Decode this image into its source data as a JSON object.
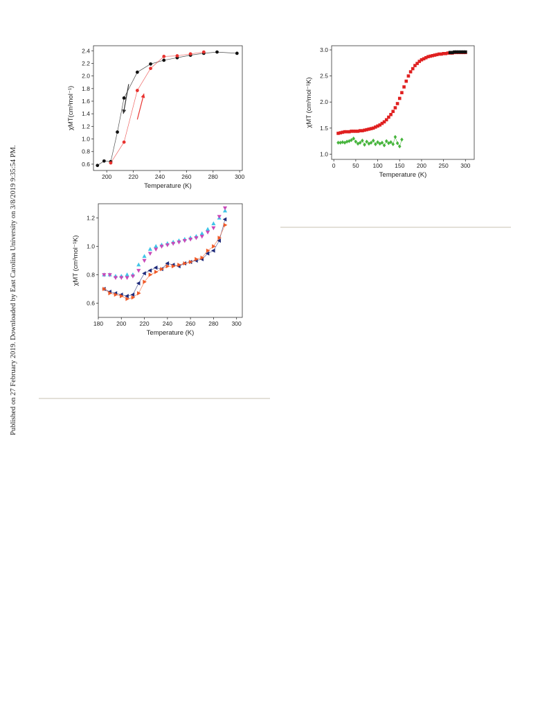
{
  "watermark": "Published on 27 February 2019. Downloaded by East Carolina University on 3/8/2019 9:35:54 PM.",
  "chart_data": [
    {
      "type": "scatter",
      "xlabel": "Temperature (K)",
      "ylabel": "χMT(cm³mol⁻¹)",
      "xlim": [
        190,
        302
      ],
      "ylim": [
        0.5,
        2.48
      ],
      "xticks": [
        200,
        220,
        240,
        260,
        280,
        300
      ],
      "yticks": [
        0.6,
        0.8,
        1.0,
        1.2,
        1.4,
        1.6,
        1.8,
        2.0,
        2.2,
        2.4
      ],
      "grid": false,
      "series": [
        {
          "color": "#111111",
          "connect": true,
          "x": [
            193,
            198,
            203,
            208,
            213,
            223,
            233,
            243,
            253,
            263,
            273,
            283,
            298
          ],
          "y": [
            0.58,
            0.65,
            0.64,
            1.11,
            1.65,
            2.06,
            2.19,
            2.25,
            2.29,
            2.33,
            2.36,
            2.38,
            2.36
          ]
        },
        {
          "color": "#e8322f",
          "connect": true,
          "x": [
            203,
            213,
            223,
            233,
            243,
            253,
            263,
            273
          ],
          "y": [
            0.62,
            0.95,
            1.77,
            2.12,
            2.31,
            2.32,
            2.35,
            2.38
          ]
        }
      ],
      "arrows": [
        {
          "color": "#333333",
          "from": [
            216.5,
            1.87
          ],
          "to": [
            212.5,
            1.4
          ]
        },
        {
          "color": "#e8322f",
          "from": [
            223,
            1.31
          ],
          "to": [
            228,
            1.72
          ]
        }
      ]
    },
    {
      "type": "scatter",
      "xlabel": "Temperature (K)",
      "ylabel": "χMT (cm³mol⁻¹K)",
      "xlim": [
        -5,
        320
      ],
      "ylim": [
        0.9,
        3.08
      ],
      "xticks": [
        0,
        50,
        100,
        150,
        200,
        250,
        300
      ],
      "yticks": [
        1.0,
        1.5,
        2.0,
        2.5,
        3.0
      ],
      "grid": false,
      "series": [
        {
          "color": "#e02020",
          "marker": "square",
          "x": [
            10,
            15,
            20,
            25,
            30,
            35,
            40,
            45,
            50,
            55,
            60,
            65,
            70,
            75,
            80,
            85,
            90,
            95,
            100,
            105,
            110,
            115,
            120,
            125,
            130,
            135,
            140,
            145,
            150,
            155,
            160,
            165,
            170,
            175,
            180,
            185,
            190,
            195,
            200,
            205,
            210,
            215,
            220,
            225,
            230,
            235,
            240,
            245,
            250,
            255,
            260,
            265,
            270,
            275,
            280,
            285,
            290,
            295,
            300
          ],
          "y": [
            1.4,
            1.41,
            1.42,
            1.43,
            1.43,
            1.43,
            1.44,
            1.44,
            1.44,
            1.44,
            1.45,
            1.45,
            1.46,
            1.47,
            1.48,
            1.49,
            1.5,
            1.52,
            1.54,
            1.56,
            1.59,
            1.62,
            1.66,
            1.71,
            1.76,
            1.82,
            1.89,
            1.97,
            2.07,
            2.18,
            2.29,
            2.4,
            2.5,
            2.58,
            2.64,
            2.7,
            2.74,
            2.78,
            2.81,
            2.83,
            2.85,
            2.87,
            2.88,
            2.89,
            2.9,
            2.91,
            2.92,
            2.92,
            2.93,
            2.93,
            2.94,
            2.94,
            2.94,
            2.95,
            2.95,
            2.95,
            2.95,
            2.95,
            2.95
          ]
        },
        {
          "color": "#111111",
          "marker": "square",
          "x": [
            265,
            270,
            275,
            280,
            285,
            290,
            295,
            300
          ],
          "y": [
            2.95,
            2.95,
            2.96,
            2.96,
            2.96,
            2.96,
            2.96,
            2.96
          ]
        },
        {
          "color": "#46b43c",
          "marker": "diamond",
          "connect": true,
          "x": [
            10,
            15,
            20,
            25,
            30,
            35,
            40,
            45,
            50,
            55,
            60,
            65,
            70,
            75,
            80,
            85,
            90,
            95,
            100,
            105,
            110,
            115,
            120,
            125,
            130,
            135,
            140,
            145,
            150,
            155
          ],
          "y": [
            1.22,
            1.22,
            1.23,
            1.22,
            1.24,
            1.25,
            1.27,
            1.3,
            1.24,
            1.2,
            1.22,
            1.26,
            1.18,
            1.24,
            1.2,
            1.22,
            1.26,
            1.19,
            1.23,
            1.2,
            1.22,
            1.17,
            1.25,
            1.21,
            1.23,
            1.19,
            1.33,
            1.21,
            1.15,
            1.28
          ]
        }
      ]
    },
    {
      "type": "line",
      "xlabel": "Temperature (K)",
      "ylabel": "χMT (cm³mol⁻¹K)",
      "xlim": [
        180,
        305
      ],
      "ylim": [
        0.5,
        1.3
      ],
      "xticks": [
        180,
        200,
        220,
        240,
        260,
        280,
        300
      ],
      "yticks": [
        0.6,
        0.8,
        1.0,
        1.2
      ],
      "grid": false,
      "series": [
        {
          "color": "#40c4e8",
          "marker": "triangle-up",
          "connect": false,
          "x": [
            185,
            190,
            195,
            200,
            205,
            210,
            215,
            220,
            225,
            230,
            235,
            240,
            245,
            250,
            255,
            260,
            265,
            270,
            275,
            280,
            285,
            290
          ],
          "y": [
            0.8,
            0.8,
            0.79,
            0.79,
            0.8,
            0.8,
            0.87,
            0.93,
            0.98,
            1.0,
            1.01,
            1.02,
            1.03,
            1.04,
            1.05,
            1.06,
            1.07,
            1.09,
            1.12,
            1.16,
            1.2,
            1.25
          ]
        },
        {
          "color": "#c84ab8",
          "marker": "triangle-down",
          "connect": false,
          "x": [
            185,
            190,
            195,
            200,
            205,
            210,
            215,
            220,
            225,
            230,
            235,
            240,
            245,
            250,
            255,
            260,
            265,
            270,
            275,
            280,
            285,
            290
          ],
          "y": [
            0.8,
            0.8,
            0.78,
            0.78,
            0.78,
            0.79,
            0.83,
            0.9,
            0.95,
            0.98,
            1.0,
            1.01,
            1.02,
            1.03,
            1.04,
            1.05,
            1.06,
            1.07,
            1.1,
            1.13,
            1.21,
            1.27
          ]
        },
        {
          "color": "#1e2a7a",
          "marker": "triangle-left",
          "connect": true,
          "x": [
            185,
            190,
            195,
            200,
            205,
            210,
            215,
            220,
            225,
            230,
            235,
            240,
            245,
            250,
            255,
            260,
            265,
            270,
            275,
            280,
            285,
            290
          ],
          "y": [
            0.7,
            0.68,
            0.67,
            0.66,
            0.65,
            0.66,
            0.74,
            0.81,
            0.83,
            0.85,
            0.84,
            0.88,
            0.87,
            0.86,
            0.88,
            0.89,
            0.9,
            0.91,
            0.95,
            0.97,
            1.04,
            1.19
          ]
        },
        {
          "color": "#f05a28",
          "marker": "triangle-right",
          "connect": true,
          "x": [
            185,
            190,
            195,
            200,
            205,
            210,
            215,
            220,
            225,
            230,
            235,
            240,
            245,
            250,
            255,
            260,
            265,
            270,
            275,
            280,
            285,
            290
          ],
          "y": [
            0.7,
            0.67,
            0.66,
            0.65,
            0.63,
            0.64,
            0.67,
            0.75,
            0.8,
            0.82,
            0.84,
            0.86,
            0.86,
            0.87,
            0.88,
            0.89,
            0.91,
            0.92,
            0.97,
            1.0,
            1.06,
            1.15
          ]
        }
      ]
    }
  ]
}
